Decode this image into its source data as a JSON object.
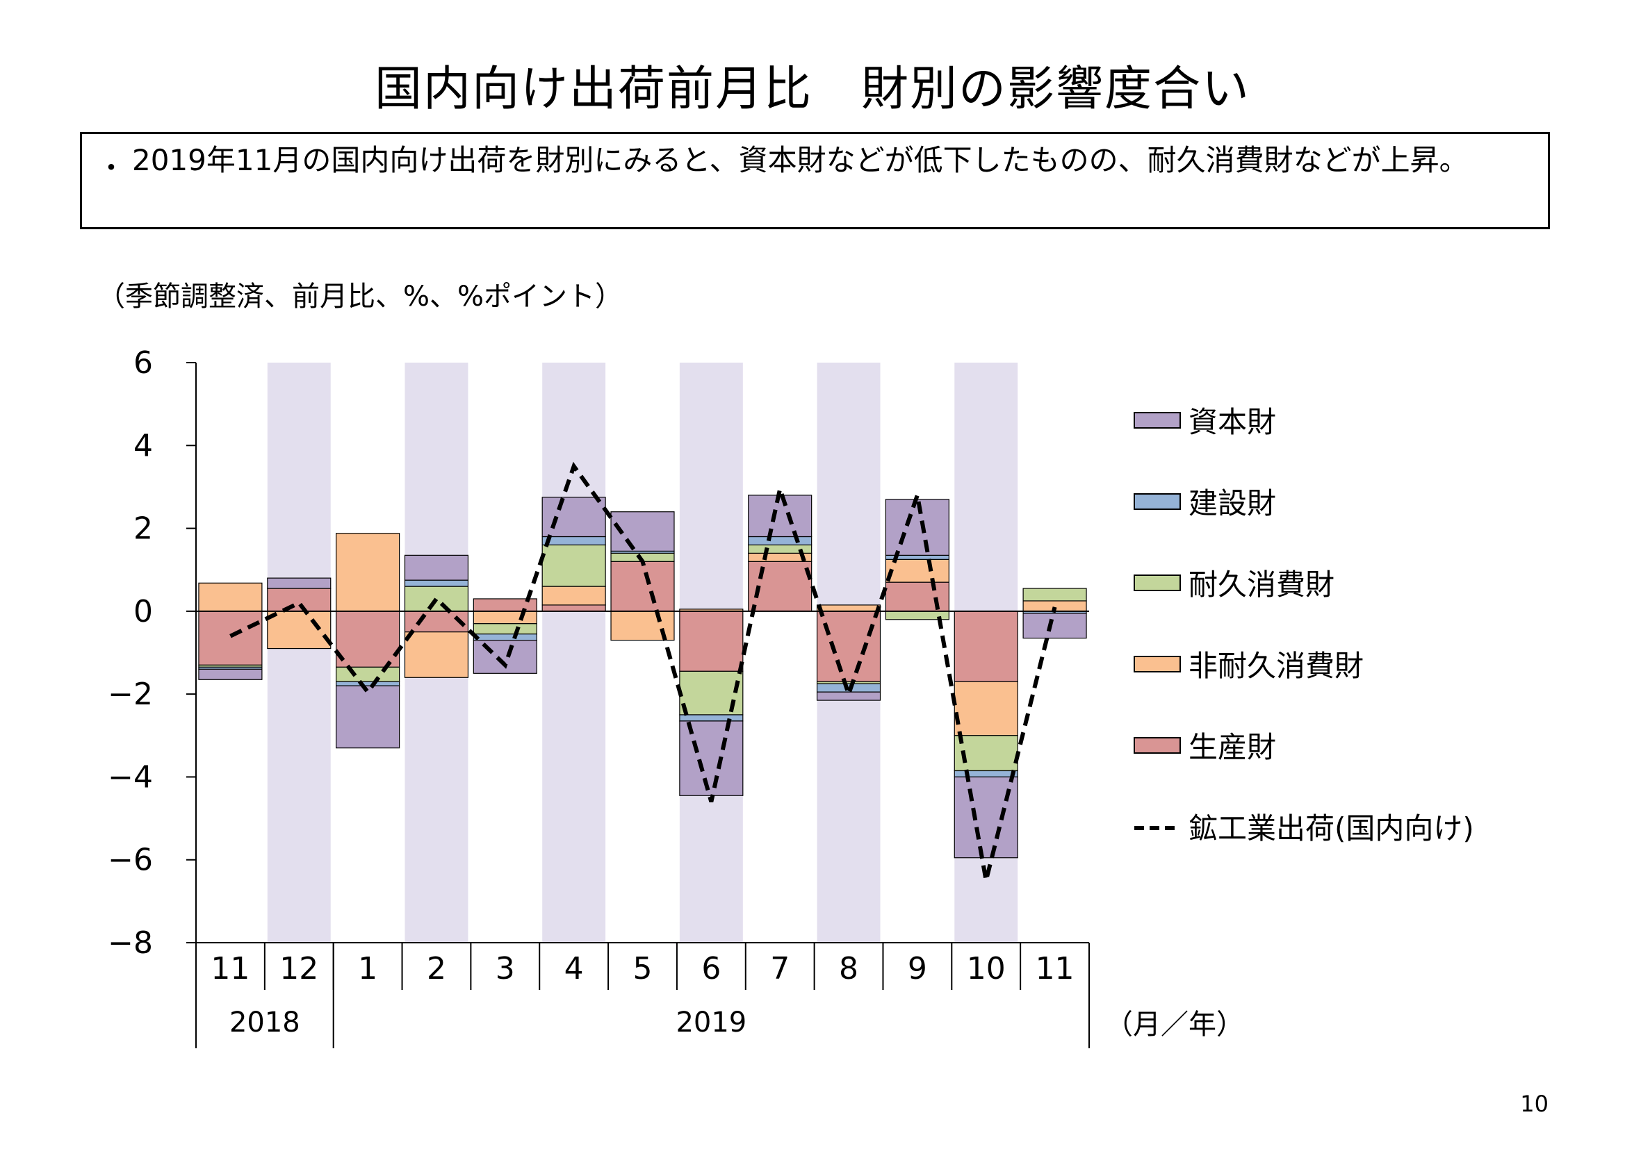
{
  "title": "国内向け出荷前月比　財別の影響度合い",
  "summary": {
    "bullet": "・",
    "text": "2019年11月の国内向け出荷を財別にみると、資本財などが低下したものの、耐久消費財などが上昇。"
  },
  "page_number": "10",
  "chart_data": {
    "type": "bar",
    "stacked": true,
    "unit_note": "（季節調整済、前月比、%、%ポイント）",
    "x_unit_label": "（月／年）",
    "categories": [
      "11",
      "12",
      "1",
      "2",
      "3",
      "4",
      "5",
      "6",
      "7",
      "8",
      "9",
      "10",
      "11"
    ],
    "year_groups": [
      {
        "label": "2018",
        "span": 2
      },
      {
        "label": "2019",
        "span": 11
      }
    ],
    "shaded_categories": [
      "12",
      "2",
      "4",
      "6",
      "8",
      "10"
    ],
    "shade_color": "#e3dfee",
    "ylim": [
      -8,
      6
    ],
    "yticks": [
      6,
      4,
      2,
      0,
      -2,
      -4,
      -6,
      -8
    ],
    "ytick_labels": [
      "6",
      "4",
      "2",
      "0",
      "−2",
      "−4",
      "−6",
      "−8"
    ],
    "series": [
      {
        "name": "生産財",
        "color": "#d99594",
        "values": [
          -1.3,
          0.55,
          -1.35,
          -0.5,
          0.3,
          0.15,
          1.2,
          -1.45,
          1.2,
          -1.7,
          0.7,
          -1.7,
          0.0
        ]
      },
      {
        "name": "非耐久消費財",
        "color": "#fac090",
        "values": [
          0.68,
          -0.9,
          1.88,
          -1.1,
          -0.3,
          0.45,
          -0.7,
          0.05,
          0.2,
          0.15,
          0.55,
          -1.3,
          0.25
        ]
      },
      {
        "name": "耐久消費財",
        "color": "#c3d69b",
        "values": [
          -0.05,
          0.0,
          -0.35,
          0.6,
          -0.25,
          1.0,
          0.2,
          -1.05,
          0.2,
          -0.05,
          -0.2,
          -0.85,
          0.3
        ]
      },
      {
        "name": "建設財",
        "color": "#95b3d7",
        "values": [
          -0.05,
          0.0,
          -0.1,
          0.15,
          -0.15,
          0.2,
          0.05,
          -0.15,
          0.2,
          -0.2,
          0.1,
          -0.15,
          -0.05
        ]
      },
      {
        "name": "資本財",
        "color": "#b2a1c7",
        "values": [
          -0.25,
          0.25,
          -1.5,
          0.6,
          -0.8,
          0.95,
          0.95,
          -1.8,
          1.0,
          -0.2,
          1.35,
          -1.95,
          -0.6
        ]
      }
    ],
    "line": {
      "name": "鉱工業出荷(国内向け)",
      "color": "#000000",
      "style": "dashed",
      "values": [
        -0.6,
        0.2,
        -1.95,
        0.3,
        -1.3,
        3.5,
        1.2,
        -4.6,
        2.95,
        -2.0,
        2.8,
        -6.5,
        0.1
      ]
    },
    "legend_order": [
      "資本財",
      "建設財",
      "耐久消費財",
      "非耐久消費財",
      "生産財",
      "鉱工業出荷(国内向け)"
    ],
    "legend_position": "right"
  }
}
